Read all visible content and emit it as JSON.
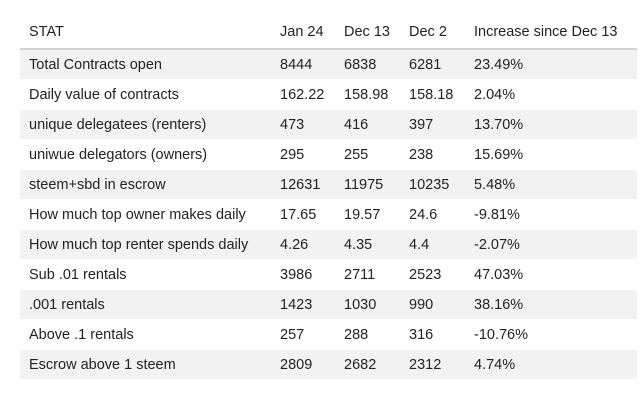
{
  "table": {
    "headers": [
      "STAT",
      "Jan 24",
      "Dec 13",
      "Dec 2",
      "Increase since Dec 13"
    ],
    "rows": [
      [
        "Total Contracts open",
        "8444",
        "6838",
        "6281",
        "23.49%"
      ],
      [
        "Daily value of contracts",
        "162.22",
        "158.98",
        "158.18",
        "2.04%"
      ],
      [
        "unique delegatees (renters)",
        "473",
        "416",
        "397",
        "13.70%"
      ],
      [
        "uniwue delegators (owners)",
        "295",
        "255",
        "238",
        "15.69%"
      ],
      [
        "steem+sbd in escrow",
        "12631",
        "11975",
        "10235",
        "5.48%"
      ],
      [
        "How much top owner makes daily",
        "17.65",
        "19.57",
        "24.6",
        "-9.81%"
      ],
      [
        "How much top renter spends daily",
        "4.26",
        "4.35",
        "4.4",
        "-2.07%"
      ],
      [
        "Sub .01 rentals",
        "3986",
        "2711",
        "2523",
        "47.03%"
      ],
      [
        ".001 rentals",
        "1423",
        "1030",
        "990",
        "38.16%"
      ],
      [
        "Above .1 rentals",
        "257",
        "288",
        "316",
        "-10.76%"
      ],
      [
        "Escrow above 1 steem",
        "2809",
        "2682",
        "2312",
        "4.74%"
      ]
    ]
  }
}
